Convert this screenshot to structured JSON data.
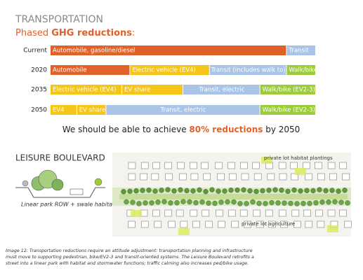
{
  "header": {
    "title": "TRANSPORTATION",
    "subtitle_parts": [
      "Phased ",
      "GHG reductions",
      ":"
    ]
  },
  "chart_data": {
    "type": "bar",
    "stacked": true,
    "orientation": "horizontal",
    "xlim": [
      0,
      100
    ],
    "rows": [
      {
        "label": "Current",
        "segments": [
          {
            "label": "Automobile, gasoline/diesel",
            "value": 89,
            "color": "#e0622a"
          },
          {
            "label": "Transit",
            "value": 11,
            "color": "#a9c4e6"
          }
        ]
      },
      {
        "label": "2020",
        "segments": [
          {
            "label": "Automobile",
            "value": 30,
            "color": "#e0622a"
          },
          {
            "label": "Electric vehicle (EV4)",
            "value": 30,
            "color": "#f5c518"
          },
          {
            "label": "Transit (includes walk to)",
            "value": 29,
            "color": "#a9c4e6"
          },
          {
            "label": "Walk/bike",
            "value": 11,
            "color": "#9ccb3b"
          }
        ]
      },
      {
        "label": "2035",
        "segments": [
          {
            "label": "Electric vehicle (EV4)",
            "value": 27,
            "color": "#f5c518"
          },
          {
            "label": "EV share",
            "value": 23,
            "color": "#f5c518"
          },
          {
            "label": "Transit, electric",
            "value": 29,
            "color": "#a9c4e6"
          },
          {
            "label": "Walk/bike (EV2-3)",
            "value": 21,
            "color": "#9ccb3b"
          }
        ]
      },
      {
        "label": "2050",
        "segments": [
          {
            "label": "EV4",
            "value": 10,
            "color": "#f5c518"
          },
          {
            "label": "EV share",
            "value": 11,
            "color": "#f5c518"
          },
          {
            "label": "Transit, electric",
            "value": 58,
            "color": "#a9c4e6"
          },
          {
            "label": "Walk/bike (EV2-3)",
            "value": 21,
            "color": "#9ccb3b"
          }
        ]
      }
    ]
  },
  "statement_parts": [
    "We should be able to achieve ",
    "80% reductions",
    " by 2050"
  ],
  "boulevard": {
    "title": "LEISURE BOULEVARD",
    "section_caption": "Linear park ROW + swale habitat",
    "map_labels": [
      "private lot habitat plantings",
      "private lot agriculture"
    ]
  },
  "caption_lines": [
    "Image 12: Transportation reductions require an attitude adjustment: transportation planning and infrastructure",
    "must move to supporting pedestrian, bike/EV2-3 and transit-oriented systems.  The Leisure Boulevard retrofits a",
    "street into a linear park with habitat and stormwater functions; traffic calming also increases ped/bike usage."
  ]
}
